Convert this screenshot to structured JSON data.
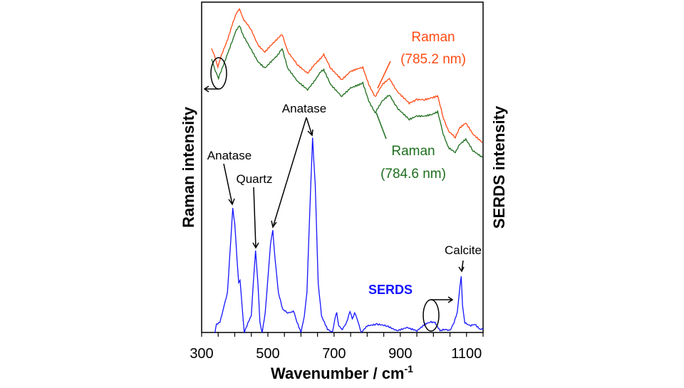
{
  "chart_data": {
    "type": "line",
    "xlabel": "Wavenumber / cm",
    "xlabel_sup": "-1",
    "ylabel_left": "Raman intensity",
    "ylabel_right": "SERDS intensity",
    "xlim": [
      300,
      1150
    ],
    "ylim": [
      0,
      100
    ],
    "xticks": [
      300,
      500,
      700,
      900,
      1100
    ],
    "grid": false,
    "y_axis_ticks": false,
    "series": [
      {
        "name": "Raman (785.2 nm)",
        "label_line1": "Raman",
        "label_line2": "(785.2 nm)",
        "color": "#ff4b14",
        "points": [
          [
            330,
            86
          ],
          [
            338,
            84
          ],
          [
            349,
            80.5
          ],
          [
            360,
            84
          ],
          [
            379,
            88.8
          ],
          [
            395,
            94
          ],
          [
            405,
            96.5
          ],
          [
            414,
            98.1
          ],
          [
            425,
            95
          ],
          [
            448,
            92
          ],
          [
            470,
            87
          ],
          [
            491,
            84.9
          ],
          [
            510,
            87
          ],
          [
            530,
            89
          ],
          [
            543,
            90.3
          ],
          [
            560,
            85
          ],
          [
            590,
            81
          ],
          [
            620,
            78.4
          ],
          [
            640,
            81
          ],
          [
            660,
            83
          ],
          [
            669,
            84.1
          ],
          [
            690,
            80
          ],
          [
            723,
            76.5
          ],
          [
            750,
            79
          ],
          [
            775,
            80
          ],
          [
            787,
            80.2
          ],
          [
            805,
            75
          ],
          [
            824,
            71.3
          ],
          [
            845,
            75
          ],
          [
            867,
            76.9
          ],
          [
            890,
            73
          ],
          [
            927,
            69.4
          ],
          [
            950,
            70.5
          ],
          [
            974,
            70.5
          ],
          [
            995,
            71
          ],
          [
            1013,
            71.6
          ],
          [
            1030,
            65
          ],
          [
            1045,
            61
          ],
          [
            1066,
            59.1
          ],
          [
            1080,
            62
          ],
          [
            1098,
            63.4
          ],
          [
            1120,
            60
          ],
          [
            1148,
            57.5
          ]
        ]
      },
      {
        "name": "Raman (784.6 nm)",
        "label_line1": "Raman",
        "label_line2": "(784.6 nm)",
        "color": "#1e6e1e",
        "points": [
          [
            330,
            83
          ],
          [
            338,
            80
          ],
          [
            351,
            77
          ],
          [
            362,
            80
          ],
          [
            379,
            84.5
          ],
          [
            395,
            89
          ],
          [
            405,
            91.5
          ],
          [
            414,
            93
          ],
          [
            425,
            90
          ],
          [
            448,
            86
          ],
          [
            470,
            82
          ],
          [
            491,
            80
          ],
          [
            510,
            82
          ],
          [
            530,
            84
          ],
          [
            543,
            86
          ],
          [
            560,
            80
          ],
          [
            590,
            76
          ],
          [
            620,
            73.5
          ],
          [
            640,
            76
          ],
          [
            660,
            79
          ],
          [
            669,
            79.5
          ],
          [
            690,
            75
          ],
          [
            723,
            71.5
          ],
          [
            750,
            74
          ],
          [
            775,
            75
          ],
          [
            787,
            75.5
          ],
          [
            805,
            70
          ],
          [
            824,
            66.5
          ],
          [
            845,
            70
          ],
          [
            867,
            72
          ],
          [
            890,
            68
          ],
          [
            927,
            64.5
          ],
          [
            950,
            65.5
          ],
          [
            974,
            65.5
          ],
          [
            995,
            66
          ],
          [
            1013,
            66.8
          ],
          [
            1030,
            60
          ],
          [
            1045,
            56
          ],
          [
            1066,
            54.5
          ],
          [
            1080,
            57
          ],
          [
            1098,
            58.5
          ],
          [
            1120,
            55
          ],
          [
            1148,
            53
          ]
        ]
      },
      {
        "name": "SERDS",
        "color": "#1414ff",
        "points": [
          [
            340,
            0
          ],
          [
            345,
            2.5
          ],
          [
            355,
            3
          ],
          [
            365,
            7
          ],
          [
            378,
            12
          ],
          [
            388,
            28
          ],
          [
            394,
            37.5
          ],
          [
            400,
            33
          ],
          [
            407,
            22
          ],
          [
            412,
            15
          ],
          [
            416,
            16
          ],
          [
            422,
            8
          ],
          [
            429,
            0
          ],
          [
            440,
            3
          ],
          [
            450,
            5
          ],
          [
            456,
            15
          ],
          [
            463,
            24.6
          ],
          [
            470,
            15
          ],
          [
            476,
            3
          ],
          [
            483,
            0
          ],
          [
            492,
            6
          ],
          [
            500,
            16
          ],
          [
            508,
            27
          ],
          [
            515,
            30.8
          ],
          [
            522,
            22
          ],
          [
            532,
            12
          ],
          [
            545,
            7
          ],
          [
            560,
            6
          ],
          [
            570,
            6
          ],
          [
            577,
            6.7
          ],
          [
            585,
            4
          ],
          [
            600,
            0
          ],
          [
            610,
            5
          ],
          [
            618,
            12
          ],
          [
            626,
            35
          ],
          [
            635,
            58.8
          ],
          [
            643,
            45
          ],
          [
            652,
            15
          ],
          [
            662,
            5
          ],
          [
            680,
            1
          ],
          [
            695,
            0
          ],
          [
            702,
            4
          ],
          [
            708,
            6
          ],
          [
            714,
            2
          ],
          [
            725,
            1
          ],
          [
            738,
            3
          ],
          [
            748,
            6.5
          ],
          [
            755,
            4
          ],
          [
            762,
            6
          ],
          [
            770,
            4
          ],
          [
            782,
            0
          ],
          [
            800,
            2
          ],
          [
            830,
            2.5
          ],
          [
            860,
            2
          ],
          [
            890,
            0.5
          ],
          [
            920,
            1.5
          ],
          [
            950,
            0.5
          ],
          [
            975,
            2.5
          ],
          [
            990,
            3.2
          ],
          [
            1005,
            3
          ],
          [
            1020,
            0.5
          ],
          [
            1035,
            1
          ],
          [
            1050,
            0.5
          ],
          [
            1062,
            3
          ],
          [
            1072,
            6
          ],
          [
            1080,
            14
          ],
          [
            1084,
            17
          ],
          [
            1088,
            8
          ],
          [
            1095,
            3
          ],
          [
            1110,
            2
          ],
          [
            1125,
            2.5
          ],
          [
            1140,
            1
          ],
          [
            1150,
            1
          ]
        ]
      }
    ],
    "annotations": {
      "anatase_1": "Anatase",
      "quartz": "Quartz",
      "anatase_2": "Anatase",
      "calcite": "Calcite",
      "serds_label": "SERDS"
    }
  }
}
